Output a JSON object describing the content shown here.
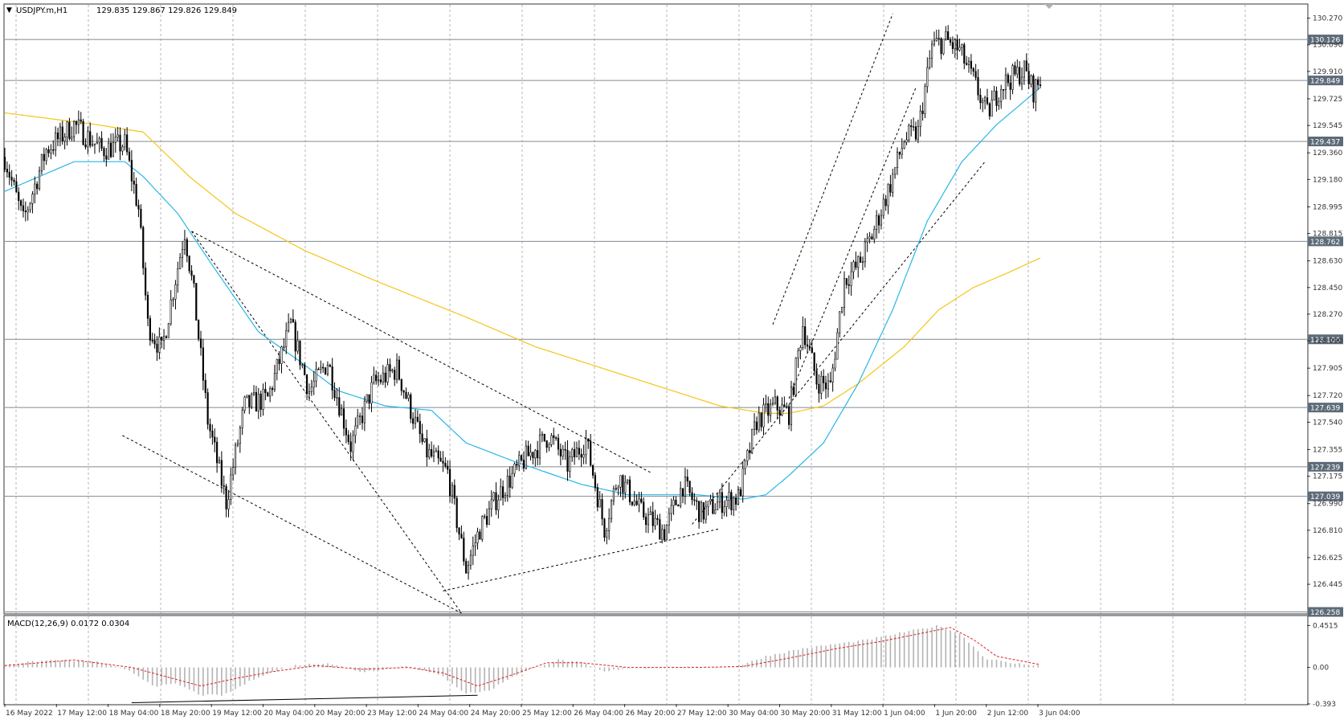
{
  "window": {
    "title": "USDJPY.m,H1",
    "ohlc": "129.835 129.867 129.826 129.849"
  },
  "macd": {
    "label": "MACD(12,26,9) 0.0172 0.0304",
    "ticks": [
      "0.4515",
      "0.00",
      "-0.393"
    ]
  },
  "axis": {
    "price_ticks": [
      "130.270",
      "130.090",
      "129.910",
      "129.725",
      "129.545",
      "129.360",
      "129.180",
      "128.995",
      "128.815",
      "128.630",
      "128.450",
      "128.270",
      "128.090",
      "127.905",
      "127.720",
      "127.540",
      "127.355",
      "127.175",
      "126.990",
      "126.810",
      "126.625",
      "126.445"
    ],
    "time_labels": [
      "16 May 2022",
      "17 May 12:00",
      "18 May 04:00",
      "18 May 20:00",
      "19 May 12:00",
      "20 May 04:00",
      "20 May 20:00",
      "23 May 12:00",
      "24 May 04:00",
      "24 May 20:00",
      "25 May 12:00",
      "26 May 04:00",
      "26 May 20:00",
      "27 May 12:00",
      "30 May 04:00",
      "30 May 20:00",
      "31 May 12:00",
      "1 Jun 04:00",
      "1 Jun 20:00",
      "2 Jun 12:00",
      "3 Jun 04:00"
    ]
  },
  "levels": [
    {
      "value": 130.126,
      "label": "130.126"
    },
    {
      "value": 129.849,
      "label": "129.849"
    },
    {
      "value": 129.437,
      "label": "129.437"
    },
    {
      "value": 128.762,
      "label": "128.762"
    },
    {
      "value": 128.1,
      "label": "128.100"
    },
    {
      "value": 127.639,
      "label": "127.639"
    },
    {
      "value": 127.239,
      "label": "127.239"
    },
    {
      "value": 127.039,
      "label": "127.039"
    },
    {
      "value": 126.258,
      "label": "126.258"
    }
  ],
  "colors": {
    "background": "#ffffff",
    "grid": "#b4b4b4",
    "candle": "#000000",
    "level_line": "#7f8a94",
    "label_bg": "#5d6b78",
    "ma_fast": "#29b6e6",
    "ma_slow": "#f5c518",
    "macd_hist": "#b3b3b3",
    "macd_signal": "#e02020"
  },
  "chart_data": {
    "type": "candlestick",
    "symbol": "USDJPY.m",
    "timeframe": "H1",
    "y_range": [
      126.25,
      130.36
    ],
    "key_prices": [
      [
        0,
        129.33
      ],
      [
        8,
        128.9
      ],
      [
        18,
        129.38
      ],
      [
        30,
        129.55
      ],
      [
        42,
        129.38
      ],
      [
        52,
        129.42
      ],
      [
        58,
        128.98
      ],
      [
        62,
        128.2
      ],
      [
        68,
        128.02
      ],
      [
        72,
        128.35
      ],
      [
        78,
        128.83
      ],
      [
        82,
        128.4
      ],
      [
        88,
        127.55
      ],
      [
        96,
        127.0
      ],
      [
        104,
        127.65
      ],
      [
        114,
        127.7
      ],
      [
        124,
        128.2
      ],
      [
        132,
        127.75
      ],
      [
        140,
        127.95
      ],
      [
        150,
        127.38
      ],
      [
        160,
        127.8
      ],
      [
        170,
        127.9
      ],
      [
        182,
        127.35
      ],
      [
        192,
        127.2
      ],
      [
        200,
        126.55
      ],
      [
        206,
        126.82
      ],
      [
        214,
        127.05
      ],
      [
        226,
        127.3
      ],
      [
        236,
        127.45
      ],
      [
        244,
        127.25
      ],
      [
        252,
        127.42
      ],
      [
        260,
        126.82
      ],
      [
        266,
        127.18
      ],
      [
        276,
        126.93
      ],
      [
        286,
        126.8
      ],
      [
        294,
        127.12
      ],
      [
        302,
        126.92
      ],
      [
        310,
        127.0
      ],
      [
        318,
        127.03
      ],
      [
        326,
        127.55
      ],
      [
        334,
        127.65
      ],
      [
        340,
        127.6
      ],
      [
        346,
        128.2
      ],
      [
        352,
        127.82
      ],
      [
        358,
        127.78
      ],
      [
        364,
        128.5
      ],
      [
        370,
        128.6
      ],
      [
        376,
        128.8
      ],
      [
        384,
        129.15
      ],
      [
        390,
        129.45
      ],
      [
        396,
        129.5
      ],
      [
        402,
        130.08
      ],
      [
        408,
        130.12
      ],
      [
        414,
        130.05
      ],
      [
        420,
        129.85
      ],
      [
        426,
        129.62
      ],
      [
        432,
        129.82
      ],
      [
        438,
        129.88
      ],
      [
        442,
        129.92
      ],
      [
        446,
        129.78
      ],
      [
        449,
        129.849
      ]
    ],
    "ma_fast": [
      [
        0,
        129.1
      ],
      [
        30,
        129.3
      ],
      [
        52,
        129.3
      ],
      [
        60,
        129.2
      ],
      [
        75,
        128.95
      ],
      [
        90,
        128.6
      ],
      [
        110,
        128.15
      ],
      [
        128,
        127.95
      ],
      [
        145,
        127.75
      ],
      [
        165,
        127.65
      ],
      [
        185,
        127.62
      ],
      [
        200,
        127.4
      ],
      [
        220,
        127.28
      ],
      [
        250,
        127.12
      ],
      [
        270,
        127.05
      ],
      [
        300,
        127.05
      ],
      [
        320,
        127.02
      ],
      [
        330,
        127.05
      ],
      [
        340,
        127.18
      ],
      [
        355,
        127.4
      ],
      [
        370,
        127.8
      ],
      [
        385,
        128.3
      ],
      [
        400,
        128.9
      ],
      [
        415,
        129.3
      ],
      [
        430,
        129.55
      ],
      [
        449,
        129.8
      ]
    ],
    "ma_slow": [
      [
        0,
        129.63
      ],
      [
        40,
        129.55
      ],
      [
        60,
        129.5
      ],
      [
        80,
        129.2
      ],
      [
        100,
        128.95
      ],
      [
        130,
        128.7
      ],
      [
        160,
        128.5
      ],
      [
        200,
        128.25
      ],
      [
        230,
        128.05
      ],
      [
        260,
        127.9
      ],
      [
        290,
        127.75
      ],
      [
        310,
        127.65
      ],
      [
        330,
        127.6
      ],
      [
        340,
        127.6
      ],
      [
        355,
        127.65
      ],
      [
        370,
        127.8
      ],
      [
        390,
        128.05
      ],
      [
        405,
        128.3
      ],
      [
        420,
        128.45
      ],
      [
        435,
        128.55
      ],
      [
        449,
        128.65
      ]
    ],
    "macd": {
      "y_range": [
        -0.393,
        0.55
      ],
      "histogram": [
        [
          0,
          0.03
        ],
        [
          20,
          0.08
        ],
        [
          40,
          0.06
        ],
        [
          55,
          -0.05
        ],
        [
          65,
          -0.2
        ],
        [
          75,
          -0.18
        ],
        [
          85,
          -0.3
        ],
        [
          95,
          -0.3
        ],
        [
          110,
          -0.1
        ],
        [
          125,
          0.02
        ],
        [
          140,
          0.05
        ],
        [
          155,
          -0.05
        ],
        [
          175,
          0.02
        ],
        [
          190,
          -0.1
        ],
        [
          200,
          -0.28
        ],
        [
          210,
          -0.25
        ],
        [
          220,
          -0.1
        ],
        [
          230,
          0.0
        ],
        [
          240,
          0.08
        ],
        [
          250,
          0.05
        ],
        [
          260,
          -0.05
        ],
        [
          270,
          0.0
        ],
        [
          290,
          0.0
        ],
        [
          310,
          0.0
        ],
        [
          320,
          0.03
        ],
        [
          330,
          0.12
        ],
        [
          345,
          0.2
        ],
        [
          360,
          0.25
        ],
        [
          375,
          0.3
        ],
        [
          390,
          0.38
        ],
        [
          405,
          0.45
        ],
        [
          415,
          0.35
        ],
        [
          425,
          0.1
        ],
        [
          435,
          0.05
        ],
        [
          449,
          0.02
        ]
      ],
      "signal": [
        [
          0,
          0.02
        ],
        [
          30,
          0.08
        ],
        [
          55,
          0.0
        ],
        [
          70,
          -0.1
        ],
        [
          85,
          -0.2
        ],
        [
          100,
          -0.12
        ],
        [
          115,
          -0.05
        ],
        [
          135,
          0.02
        ],
        [
          155,
          -0.02
        ],
        [
          175,
          0.0
        ],
        [
          190,
          -0.06
        ],
        [
          205,
          -0.2
        ],
        [
          220,
          -0.08
        ],
        [
          235,
          0.05
        ],
        [
          250,
          0.05
        ],
        [
          270,
          0.0
        ],
        [
          300,
          0.0
        ],
        [
          320,
          0.01
        ],
        [
          340,
          0.1
        ],
        [
          360,
          0.2
        ],
        [
          380,
          0.28
        ],
        [
          400,
          0.38
        ],
        [
          410,
          0.43
        ],
        [
          420,
          0.3
        ],
        [
          430,
          0.12
        ],
        [
          449,
          0.03
        ]
      ]
    },
    "trendlines": [
      {
        "from": [
          81,
          128.83
        ],
        "to": [
          198,
          126.25
        ]
      },
      {
        "from": [
          51,
          127.45
        ],
        "to": [
          198,
          126.25
        ]
      },
      {
        "from": [
          81,
          128.83
        ],
        "to": [
          280,
          127.2
        ]
      },
      {
        "from": [
          190,
          126.4
        ],
        "to": [
          310,
          126.82
        ]
      },
      {
        "from": [
          298,
          126.85
        ],
        "to": [
          425,
          129.3
        ]
      },
      {
        "from": [
          333,
          128.2
        ],
        "to": [
          385,
          130.3
        ]
      },
      {
        "from": [
          340,
          127.7
        ],
        "to": [
          395,
          129.8
        ]
      }
    ]
  }
}
